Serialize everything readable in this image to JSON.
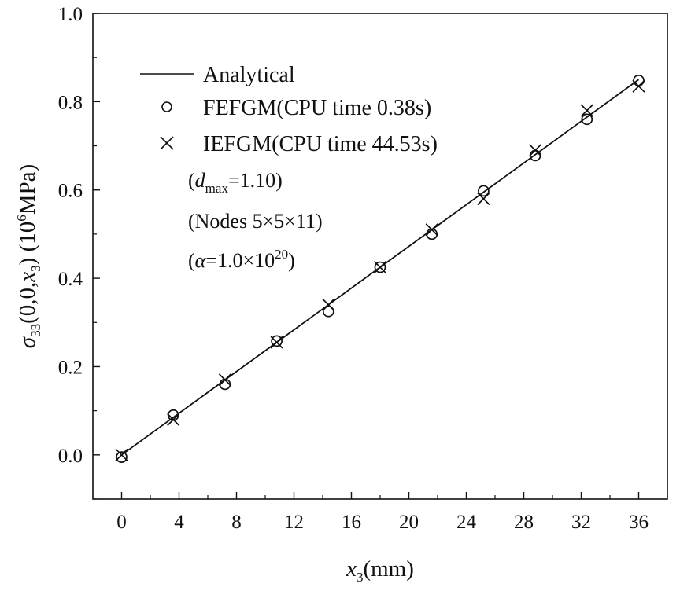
{
  "chart_data": {
    "type": "line",
    "xlabel": {
      "symbol": "x",
      "subscript": "3",
      "unit": "(mm)"
    },
    "ylabel": {
      "symbol": "σ",
      "subscript": "33",
      "args": "(0,0,",
      "argvar": "x",
      "argsub": "3",
      "argclose": ")",
      "unit_pre": " (10",
      "unit_exp": "6",
      "unit_post": "MPa)"
    },
    "xlim": [
      -2,
      38
    ],
    "ylim": [
      -0.1,
      1.0
    ],
    "xticks": [
      0,
      4,
      8,
      12,
      16,
      20,
      24,
      28,
      32,
      36
    ],
    "xtick_labels": [
      "0",
      "4",
      "8",
      "12",
      "16",
      "20",
      "24",
      "28",
      "32",
      "36"
    ],
    "yticks": [
      0.0,
      0.2,
      0.4,
      0.6,
      0.8,
      1.0
    ],
    "ytick_labels": [
      "0.0",
      "0.2",
      "0.4",
      "0.6",
      "0.8",
      "1.0"
    ],
    "grid": false,
    "legend_position": "top-left",
    "series": [
      {
        "name": "Analytical",
        "style": "line",
        "x": [
          0,
          36
        ],
        "y": [
          0.0,
          0.85
        ]
      },
      {
        "name": "FEFGM(CPU time 0.38s)",
        "style": "circle",
        "x": [
          0,
          3.6,
          7.2,
          10.8,
          14.4,
          18.0,
          21.6,
          25.2,
          28.8,
          32.4,
          36.0
        ],
        "y": [
          -0.005,
          0.09,
          0.16,
          0.258,
          0.325,
          0.425,
          0.5,
          0.598,
          0.678,
          0.76,
          0.848
        ]
      },
      {
        "name": "IEFGM(CPU time 44.53s)",
        "style": "cross",
        "x": [
          0,
          3.6,
          7.2,
          10.8,
          14.4,
          18.0,
          21.6,
          25.2,
          28.8,
          32.4,
          36.0
        ],
        "y": [
          0.0,
          0.08,
          0.17,
          0.255,
          0.34,
          0.425,
          0.51,
          0.58,
          0.69,
          0.78,
          0.835
        ]
      }
    ],
    "annotations": {
      "dmax": {
        "open": "(",
        "var": "d",
        "sub": "max",
        "rest": "=1.10)"
      },
      "nodes": "(Nodes 5×5×11)",
      "alpha": {
        "open": "(",
        "var": "α",
        "rest": "=1.0×10",
        "exp": "20",
        "close": ")"
      }
    }
  }
}
